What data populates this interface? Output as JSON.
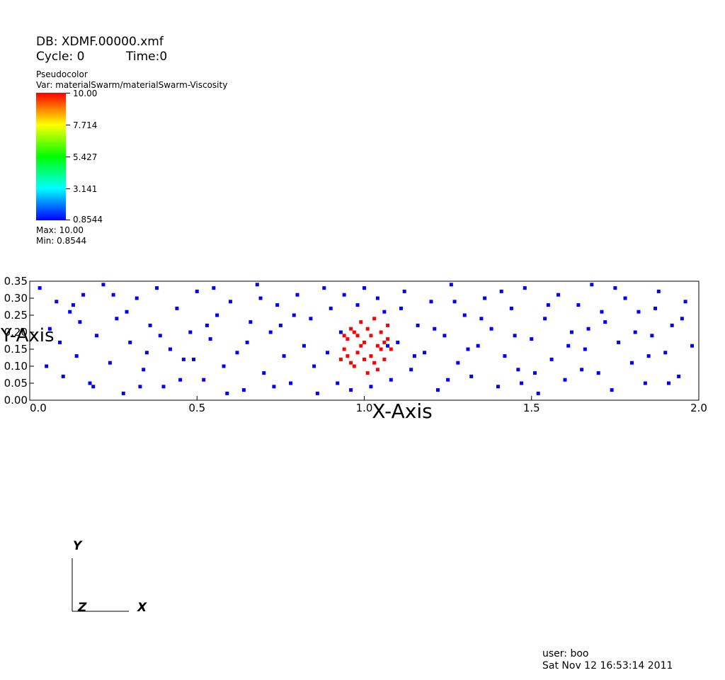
{
  "header": {
    "db_label": "DB: XDMF.00000.xmf",
    "cycle_label": "Cycle: 0",
    "time_label": "Time:0"
  },
  "legend": {
    "plot_type": "Pseudocolor",
    "var_label": "Var: materialSwarm/materialSwarm-Viscosity",
    "ticks": [
      "10.00",
      "7.714",
      "5.427",
      "3.141",
      "0.8544"
    ],
    "max_label": "Max:  10.00",
    "min_label": "Min:  0.8544",
    "colormap": [
      "#0000ff",
      "#00ffff",
      "#00ff00",
      "#ffff00",
      "#ff0000"
    ]
  },
  "axes_triad": {
    "y_label": "Y",
    "z_label": "Z",
    "x_label": "X"
  },
  "footer": {
    "user_label": "user: boo",
    "date_label": "Sat Nov 12 16:53:14 2011"
  },
  "chart_data": {
    "type": "scatter",
    "title": "",
    "xlabel": "X-Axis",
    "ylabel": "Y-Axis",
    "xlim": [
      0.0,
      2.0
    ],
    "ylim": [
      0.0,
      0.35
    ],
    "x_ticks": [
      "0.0",
      "0.5",
      "1.0",
      "1.5",
      "2.0"
    ],
    "y_ticks": [
      "0.00",
      "0.05",
      "0.10",
      "0.15",
      "0.20",
      "0.25",
      "0.30",
      "0.35"
    ],
    "grid": false,
    "series": [
      {
        "name": "",
        "value": 0.8544,
        "color": "#0000ff",
        "points": [
          [
            0.03,
            0.33
          ],
          [
            0.06,
            0.21
          ],
          [
            0.08,
            0.29
          ],
          [
            0.1,
            0.07
          ],
          [
            0.12,
            0.26
          ],
          [
            0.14,
            0.13
          ],
          [
            0.16,
            0.31
          ],
          [
            0.18,
            0.05
          ],
          [
            0.2,
            0.19
          ],
          [
            0.22,
            0.34
          ],
          [
            0.24,
            0.11
          ],
          [
            0.26,
            0.24
          ],
          [
            0.28,
            0.02
          ],
          [
            0.3,
            0.17
          ],
          [
            0.32,
            0.3
          ],
          [
            0.34,
            0.09
          ],
          [
            0.36,
            0.22
          ],
          [
            0.38,
            0.33
          ],
          [
            0.4,
            0.04
          ],
          [
            0.42,
            0.15
          ],
          [
            0.44,
            0.27
          ],
          [
            0.46,
            0.12
          ],
          [
            0.48,
            0.2
          ],
          [
            0.5,
            0.32
          ],
          [
            0.52,
            0.06
          ],
          [
            0.54,
            0.18
          ],
          [
            0.56,
            0.25
          ],
          [
            0.58,
            0.1
          ],
          [
            0.6,
            0.29
          ],
          [
            0.62,
            0.14
          ],
          [
            0.64,
            0.03
          ],
          [
            0.66,
            0.23
          ],
          [
            0.68,
            0.34
          ],
          [
            0.7,
            0.08
          ],
          [
            0.72,
            0.2
          ],
          [
            0.74,
            0.28
          ],
          [
            0.76,
            0.13
          ],
          [
            0.78,
            0.05
          ],
          [
            0.8,
            0.31
          ],
          [
            0.82,
            0.16
          ],
          [
            0.84,
            0.24
          ],
          [
            0.86,
            0.02
          ],
          [
            0.88,
            0.33
          ],
          [
            0.9,
            0.27
          ],
          [
            0.92,
            0.05
          ],
          [
            0.94,
            0.31
          ],
          [
            0.96,
            0.03
          ],
          [
            0.98,
            0.28
          ],
          [
            1.0,
            0.33
          ],
          [
            1.02,
            0.04
          ],
          [
            1.04,
            0.3
          ],
          [
            1.06,
            0.26
          ],
          [
            1.08,
            0.06
          ],
          [
            1.1,
            0.17
          ],
          [
            1.12,
            0.32
          ],
          [
            1.14,
            0.09
          ],
          [
            1.16,
            0.22
          ],
          [
            1.18,
            0.14
          ],
          [
            1.2,
            0.29
          ],
          [
            1.22,
            0.03
          ],
          [
            1.24,
            0.19
          ],
          [
            1.26,
            0.34
          ],
          [
            1.28,
            0.11
          ],
          [
            1.3,
            0.25
          ],
          [
            1.32,
            0.07
          ],
          [
            1.34,
            0.16
          ],
          [
            1.36,
            0.3
          ],
          [
            1.38,
            0.21
          ],
          [
            1.4,
            0.04
          ],
          [
            1.42,
            0.13
          ],
          [
            1.44,
            0.27
          ],
          [
            1.46,
            0.09
          ],
          [
            1.48,
            0.33
          ],
          [
            1.5,
            0.18
          ],
          [
            1.52,
            0.02
          ],
          [
            1.54,
            0.24
          ],
          [
            1.56,
            0.12
          ],
          [
            1.58,
            0.31
          ],
          [
            1.6,
            0.06
          ],
          [
            1.62,
            0.2
          ],
          [
            1.64,
            0.28
          ],
          [
            1.66,
            0.15
          ],
          [
            1.68,
            0.34
          ],
          [
            1.7,
            0.08
          ],
          [
            1.72,
            0.23
          ],
          [
            1.74,
            0.03
          ],
          [
            1.76,
            0.17
          ],
          [
            1.78,
            0.3
          ],
          [
            1.8,
            0.11
          ],
          [
            1.82,
            0.26
          ],
          [
            1.84,
            0.05
          ],
          [
            1.86,
            0.19
          ],
          [
            1.88,
            0.32
          ],
          [
            1.9,
            0.14
          ],
          [
            1.92,
            0.22
          ],
          [
            1.94,
            0.07
          ],
          [
            1.96,
            0.29
          ],
          [
            1.98,
            0.16
          ],
          [
            0.05,
            0.1
          ],
          [
            0.15,
            0.23
          ],
          [
            0.25,
            0.31
          ],
          [
            0.35,
            0.14
          ],
          [
            0.45,
            0.06
          ],
          [
            0.55,
            0.33
          ],
          [
            0.65,
            0.17
          ],
          [
            0.75,
            0.22
          ],
          [
            0.85,
            0.1
          ],
          [
            1.15,
            0.13
          ],
          [
            1.25,
            0.06
          ],
          [
            1.35,
            0.24
          ],
          [
            1.45,
            0.19
          ],
          [
            1.55,
            0.28
          ],
          [
            1.65,
            0.09
          ],
          [
            1.75,
            0.33
          ],
          [
            1.85,
            0.13
          ],
          [
            1.95,
            0.24
          ],
          [
            0.09,
            0.17
          ],
          [
            0.19,
            0.04
          ],
          [
            0.29,
            0.26
          ],
          [
            0.39,
            0.19
          ],
          [
            0.49,
            0.12
          ],
          [
            0.59,
            0.02
          ],
          [
            0.69,
            0.3
          ],
          [
            0.79,
            0.25
          ],
          [
            0.89,
            0.14
          ],
          [
            1.11,
            0.27
          ],
          [
            1.21,
            0.21
          ],
          [
            1.31,
            0.15
          ],
          [
            1.41,
            0.32
          ],
          [
            1.51,
            0.08
          ],
          [
            1.61,
            0.16
          ],
          [
            1.71,
            0.26
          ],
          [
            1.81,
            0.2
          ],
          [
            1.91,
            0.05
          ],
          [
            0.13,
            0.28
          ],
          [
            0.33,
            0.04
          ],
          [
            0.53,
            0.22
          ],
          [
            0.73,
            0.04
          ],
          [
            0.93,
            0.2
          ],
          [
            1.07,
            0.16
          ],
          [
            1.27,
            0.29
          ],
          [
            1.47,
            0.05
          ],
          [
            1.67,
            0.21
          ],
          [
            1.87,
            0.27
          ]
        ]
      },
      {
        "name": "",
        "value": 10.0,
        "color": "#ff0000",
        "points": [
          [
            0.93,
            0.12
          ],
          [
            0.94,
            0.15
          ],
          [
            0.95,
            0.18
          ],
          [
            0.96,
            0.11
          ],
          [
            0.97,
            0.2
          ],
          [
            0.98,
            0.14
          ],
          [
            0.99,
            0.23
          ],
          [
            1.0,
            0.17
          ],
          [
            1.01,
            0.21
          ],
          [
            1.02,
            0.13
          ],
          [
            1.03,
            0.24
          ],
          [
            1.04,
            0.16
          ],
          [
            1.05,
            0.2
          ],
          [
            1.06,
            0.12
          ],
          [
            1.07,
            0.18
          ],
          [
            1.08,
            0.15
          ],
          [
            0.95,
            0.13
          ],
          [
            0.97,
            0.1
          ],
          [
            0.99,
            0.16
          ],
          [
            1.01,
            0.08
          ],
          [
            1.03,
            0.11
          ],
          [
            1.05,
            0.15
          ],
          [
            1.07,
            0.22
          ],
          [
            0.96,
            0.21
          ],
          [
            1.0,
            0.12
          ],
          [
            1.02,
            0.19
          ],
          [
            1.04,
            0.09
          ],
          [
            0.98,
            0.19
          ],
          [
            1.06,
            0.17
          ],
          [
            0.94,
            0.19
          ]
        ]
      }
    ]
  }
}
